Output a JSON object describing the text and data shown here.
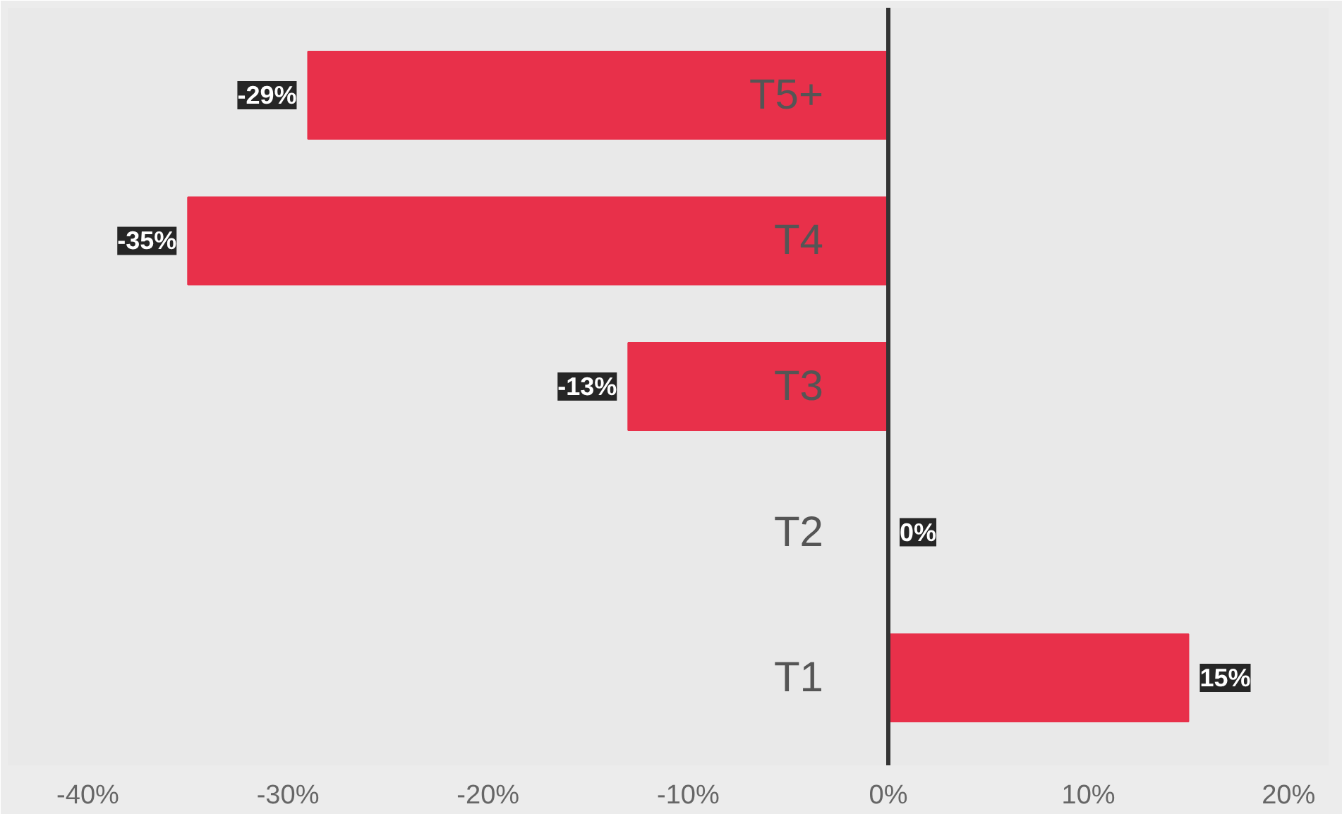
{
  "chart_data": {
    "type": "bar",
    "orientation": "horizontal",
    "categories": [
      "T5+",
      "T4",
      "T3",
      "T2",
      "T1"
    ],
    "values": [
      -29,
      -35,
      -13,
      0,
      15
    ],
    "value_labels": [
      "-29%",
      "-35%",
      "-13%",
      "0%",
      "15%"
    ],
    "color": "#e8304a",
    "xlim": [
      -44,
      22
    ],
    "xticks": [
      {
        "value": -40,
        "label": "-40%"
      },
      {
        "value": -30,
        "label": "-30%"
      },
      {
        "value": -20,
        "label": "-20%"
      },
      {
        "value": -10,
        "label": "-10%"
      },
      {
        "value": 0,
        "label": "0%"
      },
      {
        "value": 10,
        "label": "10%"
      },
      {
        "value": 20,
        "label": "20%"
      }
    ],
    "data_labels": false
  }
}
